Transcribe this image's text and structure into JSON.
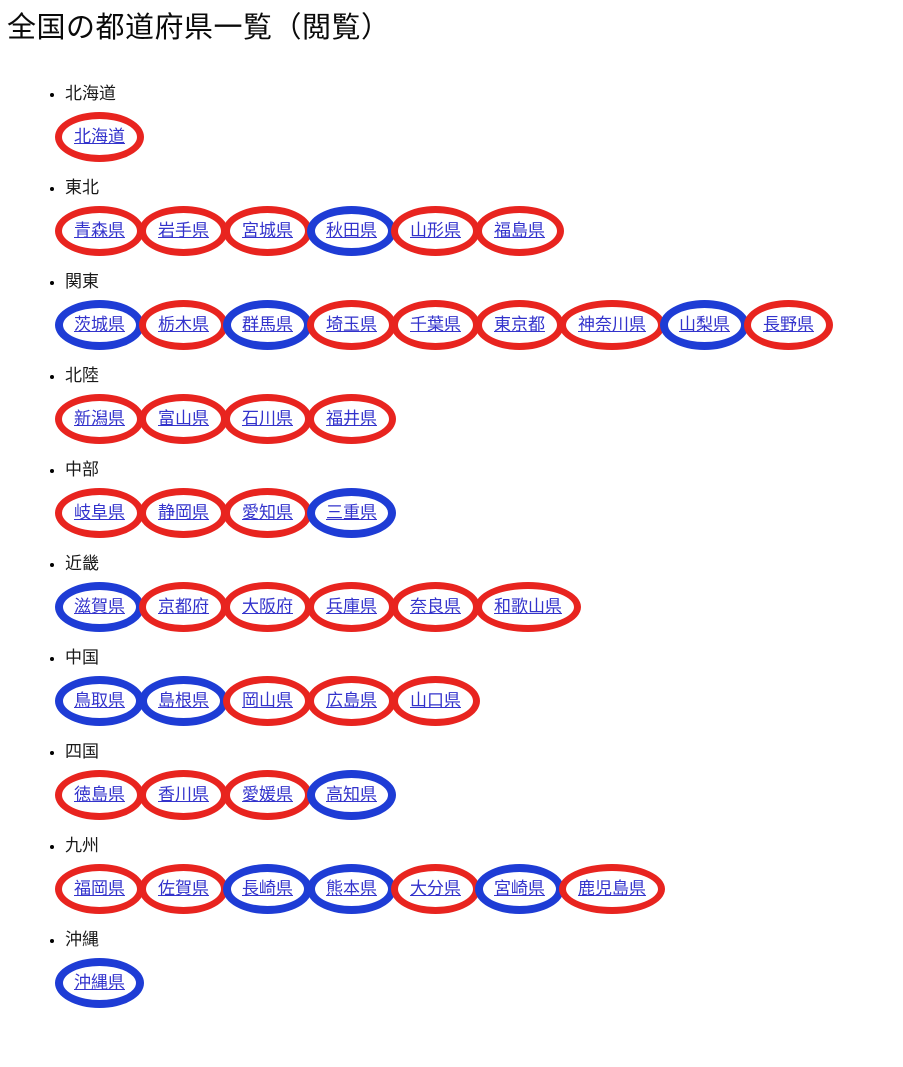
{
  "page": {
    "title": "全国の都道府県一覧（閲覧）"
  },
  "colors": {
    "red_circle": "#e8241f",
    "blue_circle": "#1e3cd5",
    "link": "#3333cc"
  },
  "regions": [
    {
      "name": "北海道",
      "prefectures": [
        {
          "label": "北海道",
          "circle": "red"
        }
      ]
    },
    {
      "name": "東北",
      "prefectures": [
        {
          "label": "青森県",
          "circle": "red"
        },
        {
          "label": "岩手県",
          "circle": "red"
        },
        {
          "label": "宮城県",
          "circle": "red"
        },
        {
          "label": "秋田県",
          "circle": "blue"
        },
        {
          "label": "山形県",
          "circle": "red"
        },
        {
          "label": "福島県",
          "circle": "red"
        }
      ]
    },
    {
      "name": "関東",
      "prefectures": [
        {
          "label": "茨城県",
          "circle": "blue"
        },
        {
          "label": "栃木県",
          "circle": "red"
        },
        {
          "label": "群馬県",
          "circle": "blue"
        },
        {
          "label": "埼玉県",
          "circle": "red"
        },
        {
          "label": "千葉県",
          "circle": "red"
        },
        {
          "label": "東京都",
          "circle": "red"
        },
        {
          "label": "神奈川県",
          "circle": "red"
        },
        {
          "label": "山梨県",
          "circle": "blue"
        },
        {
          "label": "長野県",
          "circle": "red"
        }
      ]
    },
    {
      "name": "北陸",
      "prefectures": [
        {
          "label": "新潟県",
          "circle": "red"
        },
        {
          "label": "富山県",
          "circle": "red"
        },
        {
          "label": "石川県",
          "circle": "red"
        },
        {
          "label": "福井県",
          "circle": "red"
        }
      ]
    },
    {
      "name": "中部",
      "prefectures": [
        {
          "label": "岐阜県",
          "circle": "red"
        },
        {
          "label": "静岡県",
          "circle": "red"
        },
        {
          "label": "愛知県",
          "circle": "red"
        },
        {
          "label": "三重県",
          "circle": "blue"
        }
      ]
    },
    {
      "name": "近畿",
      "prefectures": [
        {
          "label": "滋賀県",
          "circle": "blue"
        },
        {
          "label": "京都府",
          "circle": "red"
        },
        {
          "label": "大阪府",
          "circle": "red"
        },
        {
          "label": "兵庫県",
          "circle": "red"
        },
        {
          "label": "奈良県",
          "circle": "red"
        },
        {
          "label": "和歌山県",
          "circle": "red"
        }
      ]
    },
    {
      "name": "中国",
      "prefectures": [
        {
          "label": "鳥取県",
          "circle": "blue"
        },
        {
          "label": "島根県",
          "circle": "blue"
        },
        {
          "label": "岡山県",
          "circle": "red"
        },
        {
          "label": "広島県",
          "circle": "red"
        },
        {
          "label": "山口県",
          "circle": "red"
        }
      ]
    },
    {
      "name": "四国",
      "prefectures": [
        {
          "label": "徳島県",
          "circle": "red"
        },
        {
          "label": "香川県",
          "circle": "red"
        },
        {
          "label": "愛媛県",
          "circle": "red"
        },
        {
          "label": "高知県",
          "circle": "blue"
        }
      ]
    },
    {
      "name": "九州",
      "prefectures": [
        {
          "label": "福岡県",
          "circle": "red"
        },
        {
          "label": "佐賀県",
          "circle": "red"
        },
        {
          "label": "長崎県",
          "circle": "blue"
        },
        {
          "label": "熊本県",
          "circle": "blue"
        },
        {
          "label": "大分県",
          "circle": "red"
        },
        {
          "label": "宮崎県",
          "circle": "blue"
        },
        {
          "label": "鹿児島県",
          "circle": "red"
        }
      ]
    },
    {
      "name": "沖縄",
      "prefectures": [
        {
          "label": "沖縄県",
          "circle": "blue"
        }
      ]
    }
  ]
}
